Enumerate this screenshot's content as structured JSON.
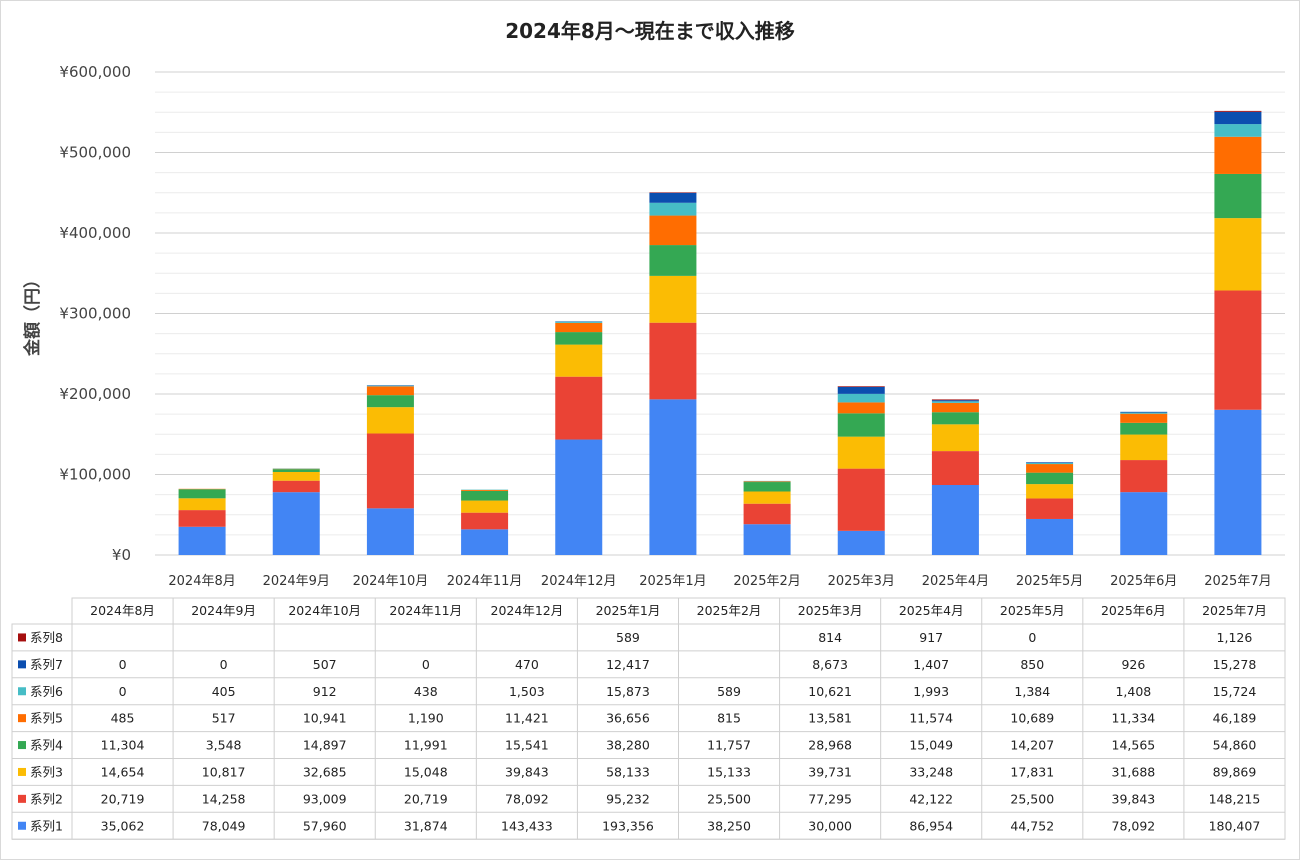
{
  "chart_data": {
    "type": "bar",
    "stacked": true,
    "title": "2024年8月～現在まで収入推移",
    "ylabel": "金額（円）",
    "ylim": [
      0,
      600000
    ],
    "y_ticks": [
      0,
      100000,
      200000,
      300000,
      400000,
      500000,
      600000
    ],
    "y_tick_labels": [
      "¥0",
      "¥100,000",
      "¥200,000",
      "¥300,000",
      "¥400,000",
      "¥500,000",
      "¥600,000"
    ],
    "grid": true,
    "categories": [
      "2024年8月",
      "2024年9月",
      "2024年10月",
      "2024年11月",
      "2024年12月",
      "2025年1月",
      "2025年2月",
      "2025年3月",
      "2025年4月",
      "2025年5月",
      "2025年6月",
      "2025年7月"
    ],
    "series": [
      {
        "name": "系列1",
        "color": "#4285F4",
        "values": [
          35062,
          78049,
          57960,
          31874,
          143433,
          193356,
          38250,
          30000,
          86954,
          44752,
          78092,
          180407
        ]
      },
      {
        "name": "系列2",
        "color": "#EA4335",
        "values": [
          20719,
          14258,
          93009,
          20719,
          78092,
          95232,
          25500,
          77295,
          42122,
          25500,
          39843,
          148215
        ]
      },
      {
        "name": "系列3",
        "color": "#FBBC04",
        "values": [
          14654,
          10817,
          32685,
          15048,
          39843,
          58133,
          15133,
          39731,
          33248,
          17831,
          31688,
          89869
        ]
      },
      {
        "name": "系列4",
        "color": "#34A853",
        "values": [
          11304,
          3548,
          14897,
          11991,
          15541,
          38280,
          11757,
          28968,
          15049,
          14207,
          14565,
          54860
        ]
      },
      {
        "name": "系列5",
        "color": "#FF6D01",
        "values": [
          485,
          517,
          10941,
          1190,
          11421,
          36656,
          815,
          13581,
          11574,
          10689,
          11334,
          46189
        ]
      },
      {
        "name": "系列6",
        "color": "#46BDC6",
        "values": [
          0,
          405,
          912,
          438,
          1503,
          15873,
          589,
          10621,
          1993,
          1384,
          1408,
          15724
        ]
      },
      {
        "name": "系列7",
        "color": "#0B4EAF",
        "values": [
          0,
          0,
          507,
          0,
          470,
          12417,
          null,
          8673,
          1407,
          850,
          926,
          15278
        ]
      },
      {
        "name": "系列8",
        "color": "#A50E0E",
        "values": [
          null,
          null,
          null,
          null,
          null,
          589,
          null,
          814,
          917,
          0,
          null,
          1126
        ]
      }
    ],
    "table": {
      "headers": [
        "2024年8月",
        "2024年9月",
        "2024年10月",
        "2024年11月",
        "2024年12月",
        "2025年1月",
        "2025年2月",
        "2025年3月",
        "2025年4月",
        "2025年5月",
        "2025年6月",
        "2025年7月"
      ],
      "rows": [
        {
          "label": "系列8",
          "cells": [
            "",
            "",
            "",
            "",
            "",
            "589",
            "",
            "814",
            "917",
            "0",
            "",
            "1,126"
          ]
        },
        {
          "label": "系列7",
          "cells": [
            "0",
            "0",
            "507",
            "0",
            "470",
            "12,417",
            "",
            "8,673",
            "1,407",
            "850",
            "926",
            "15,278"
          ]
        },
        {
          "label": "系列6",
          "cells": [
            "0",
            "405",
            "912",
            "438",
            "1,503",
            "15,873",
            "589",
            "10,621",
            "1,993",
            "1,384",
            "1,408",
            "15,724"
          ]
        },
        {
          "label": "系列5",
          "cells": [
            "485",
            "517",
            "10,941",
            "1,190",
            "11,421",
            "36,656",
            "815",
            "13,581",
            "11,574",
            "10,689",
            "11,334",
            "46,189"
          ]
        },
        {
          "label": "系列4",
          "cells": [
            "11,304",
            "3,548",
            "14,897",
            "11,991",
            "15,541",
            "38,280",
            "11,757",
            "28,968",
            "15,049",
            "14,207",
            "14,565",
            "54,860"
          ]
        },
        {
          "label": "系列3",
          "cells": [
            "14,654",
            "10,817",
            "32,685",
            "15,048",
            "39,843",
            "58,133",
            "15,133",
            "39,731",
            "33,248",
            "17,831",
            "31,688",
            "89,869"
          ]
        },
        {
          "label": "系列2",
          "cells": [
            "20,719",
            "14,258",
            "93,009",
            "20,719",
            "78,092",
            "95,232",
            "25,500",
            "77,295",
            "42,122",
            "25,500",
            "39,843",
            "148,215"
          ]
        },
        {
          "label": "系列1",
          "cells": [
            "35,062",
            "78,049",
            "57,960",
            "31,874",
            "143,433",
            "193,356",
            "38,250",
            "30,000",
            "86,954",
            "44,752",
            "78,092",
            "180,407"
          ]
        }
      ]
    }
  }
}
